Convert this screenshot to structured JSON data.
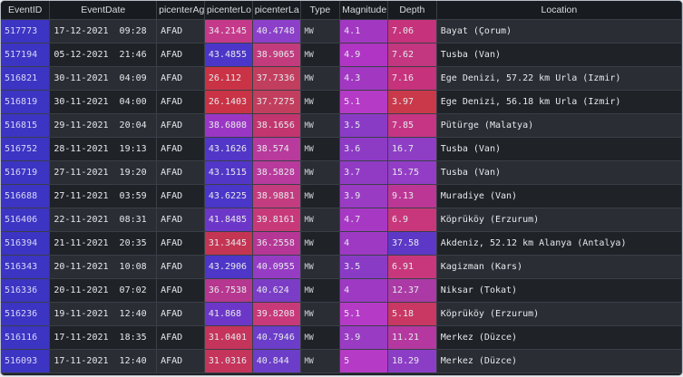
{
  "columns": [
    "EventID",
    "EventDate",
    "picenterAge",
    "picenterLo",
    "picenterLa",
    "Type",
    "Magnitude",
    "Depth",
    "Location"
  ],
  "column_widths": [
    53,
    116,
    52,
    52,
    52,
    43,
    52,
    53,
    266
  ],
  "rows": [
    {
      "id": "517773",
      "date": "17-12-2021  09:28",
      "agency": "AFAD",
      "lon": "34.2145",
      "lat": "40.4748",
      "type": "MW",
      "mag": "4.1",
      "depth": "7.06",
      "loc": "Bayat (Çorum)",
      "c": [
        "#c5398a",
        "#8c3fc9",
        "#a238c2",
        "#c6327b"
      ]
    },
    {
      "id": "517194",
      "date": "05-12-2021  21:46",
      "agency": "AFAD",
      "lon": "43.4855",
      "lat": "38.9065",
      "type": "MW",
      "mag": "4.9",
      "depth": "7.62",
      "loc": "Tusba (Van)",
      "c": [
        "#4b36c9",
        "#c23b7c",
        "#b035c4",
        "#c33680"
      ]
    },
    {
      "id": "516821",
      "date": "30-11-2021  04:09",
      "agency": "AFAD",
      "lon": "26.112",
      "lat": "37.7336",
      "type": "MW",
      "mag": "4.3",
      "depth": "7.16",
      "loc": "Ege Denizi, 57.22 km Urla (Izmir)",
      "c": [
        "#c93345",
        "#c23e5e",
        "#a238c2",
        "#c6327b"
      ]
    },
    {
      "id": "516819",
      "date": "30-11-2021  04:00",
      "agency": "AFAD",
      "lon": "26.1403",
      "lat": "37.7275",
      "type": "MW",
      "mag": "5.1",
      "depth": "3.97",
      "loc": "Ege Denizi, 56.18 km Urla (Izmir)",
      "c": [
        "#c93345",
        "#c23e5e",
        "#b53ac6",
        "#c9394a"
      ]
    },
    {
      "id": "516815",
      "date": "29-11-2021  20:04",
      "agency": "AFAD",
      "lon": "38.6808",
      "lat": "38.1656",
      "type": "MW",
      "mag": "3.5",
      "depth": "7.85",
      "loc": "Pütürge (Malatya)",
      "c": [
        "#9b36c4",
        "#c2356e",
        "#8a3bc6",
        "#c63584"
      ]
    },
    {
      "id": "516752",
      "date": "28-11-2021  19:13",
      "agency": "AFAD",
      "lon": "43.1626",
      "lat": "38.574",
      "type": "MW",
      "mag": "3.6",
      "depth": "16.7",
      "loc": "Tusba (Van)",
      "c": [
        "#5236c7",
        "#b83a9c",
        "#8d3bc5",
        "#8d3ec5"
      ]
    },
    {
      "id": "516719",
      "date": "27-11-2021  19:20",
      "agency": "AFAD",
      "lon": "43.1515",
      "lat": "38.5828",
      "type": "MW",
      "mag": "3.7",
      "depth": "15.75",
      "loc": "Tusba (Van)",
      "c": [
        "#5236c7",
        "#b83a9c",
        "#913bc5",
        "#933dc6"
      ]
    },
    {
      "id": "516688",
      "date": "27-11-2021  03:59",
      "agency": "AFAD",
      "lon": "43.6225",
      "lat": "38.9881",
      "type": "MW",
      "mag": "3.9",
      "depth": "9.13",
      "loc": "Muradiye (Van)",
      "c": [
        "#4a36c9",
        "#c33c7f",
        "#9a3bc4",
        "#bc3795"
      ]
    },
    {
      "id": "516406",
      "date": "22-11-2021  08:31",
      "agency": "AFAD",
      "lon": "41.8485",
      "lat": "39.8161",
      "type": "MW",
      "mag": "4.7",
      "depth": "6.9",
      "loc": "Köprüköy (Erzurum)",
      "c": [
        "#6c37c8",
        "#c8397a",
        "#a738c4",
        "#c8377c"
      ]
    },
    {
      "id": "516394",
      "date": "21-11-2021  20:35",
      "agency": "AFAD",
      "lon": "31.3445",
      "lat": "36.2558",
      "type": "MW",
      "mag": "4",
      "depth": "37.58",
      "loc": "Akdeniz, 52.12 km Alanya (Antalya)",
      "c": [
        "#c33553",
        "#b53695",
        "#9e39c4",
        "#5d38c6"
      ]
    },
    {
      "id": "516343",
      "date": "20-11-2021  10:08",
      "agency": "AFAD",
      "lon": "43.2906",
      "lat": "40.0955",
      "type": "MW",
      "mag": "3.5",
      "depth": "6.91",
      "loc": "Kagizman (Kars)",
      "c": [
        "#4e36c8",
        "#963cc4",
        "#8a3bc6",
        "#c8377c"
      ]
    },
    {
      "id": "516336",
      "date": "20-11-2021  07:02",
      "agency": "AFAD",
      "lon": "36.7538",
      "lat": "40.624",
      "type": "MW",
      "mag": "4",
      "depth": "12.37",
      "loc": "Niksar (Tokat)",
      "c": [
        "#b6378f",
        "#7b3dc6",
        "#9e39c4",
        "#ab3aa6"
      ]
    },
    {
      "id": "516236",
      "date": "19-11-2021  12:40",
      "agency": "AFAD",
      "lon": "41.868",
      "lat": "39.8208",
      "type": "MW",
      "mag": "5.1",
      "depth": "5.18",
      "loc": "Köprüköy (Erzurum)",
      "c": [
        "#6c37c8",
        "#c8397a",
        "#b53ac6",
        "#c93763"
      ]
    },
    {
      "id": "516116",
      "date": "17-11-2021  18:35",
      "agency": "AFAD",
      "lon": "31.0401",
      "lat": "40.7946",
      "type": "MW",
      "mag": "3.9",
      "depth": "11.21",
      "loc": "Merkez (Düzce)",
      "c": [
        "#c5345b",
        "#6b3dc8",
        "#9a3bc4",
        "#b438a0"
      ]
    },
    {
      "id": "516093",
      "date": "17-11-2021  12:40",
      "agency": "AFAD",
      "lon": "31.0316",
      "lat": "40.844",
      "type": "MW",
      "mag": "5",
      "depth": "18.29",
      "loc": "Merkez (Düzce)",
      "c": [
        "#c5345b",
        "#6b3dc8",
        "#b53ac6",
        "#8c3dc6"
      ]
    }
  ]
}
